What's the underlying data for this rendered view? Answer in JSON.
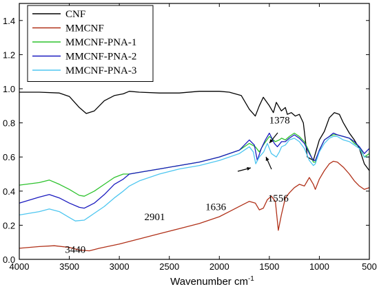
{
  "chart_data": {
    "type": "line",
    "xlabel": "Wavenumber cm",
    "xlabel_superscript": "-1",
    "xlim": [
      4000,
      500
    ],
    "ylim": [
      0.0,
      1.5
    ],
    "x_ticks": [
      "4000",
      "3500",
      "3000",
      "2500",
      "2000",
      "1500",
      "1000",
      "500"
    ],
    "y_ticks": [
      "0.0",
      "0.2",
      "0.4",
      "0.6",
      "0.8",
      "1.0",
      "1.2",
      "1.4"
    ],
    "legend_position": "top-left",
    "annotations": [
      {
        "text": "3440",
        "x": 3440,
        "y": 0.2
      },
      {
        "text": "2901",
        "x": 2901,
        "y": 0.31
      },
      {
        "text": "1636",
        "x": 1636,
        "y": 0.45
      },
      {
        "text": "1556",
        "x": 1556,
        "y": 0.5
      },
      {
        "text": "1378",
        "x": 1378,
        "y": 0.7
      }
    ],
    "series": [
      {
        "name": "CNF",
        "color": "#000000",
        "points": [
          [
            4000,
            0.98
          ],
          [
            3800,
            0.98
          ],
          [
            3600,
            0.975
          ],
          [
            3500,
            0.955
          ],
          [
            3400,
            0.89
          ],
          [
            3330,
            0.855
          ],
          [
            3250,
            0.87
          ],
          [
            3150,
            0.93
          ],
          [
            3050,
            0.96
          ],
          [
            2960,
            0.97
          ],
          [
            2900,
            0.985
          ],
          [
            2800,
            0.98
          ],
          [
            2600,
            0.975
          ],
          [
            2400,
            0.975
          ],
          [
            2200,
            0.985
          ],
          [
            2000,
            0.985
          ],
          [
            1900,
            0.98
          ],
          [
            1780,
            0.96
          ],
          [
            1700,
            0.88
          ],
          [
            1640,
            0.84
          ],
          [
            1600,
            0.9
          ],
          [
            1560,
            0.95
          ],
          [
            1500,
            0.9
          ],
          [
            1460,
            0.86
          ],
          [
            1430,
            0.92
          ],
          [
            1380,
            0.87
          ],
          [
            1340,
            0.89
          ],
          [
            1320,
            0.85
          ],
          [
            1280,
            0.86
          ],
          [
            1240,
            0.84
          ],
          [
            1200,
            0.85
          ],
          [
            1160,
            0.8
          ],
          [
            1120,
            0.6
          ],
          [
            1060,
            0.58
          ],
          [
            1000,
            0.7
          ],
          [
            950,
            0.75
          ],
          [
            900,
            0.83
          ],
          [
            850,
            0.86
          ],
          [
            800,
            0.85
          ],
          [
            760,
            0.8
          ],
          [
            700,
            0.74
          ],
          [
            650,
            0.7
          ],
          [
            600,
            0.65
          ],
          [
            550,
            0.56
          ],
          [
            500,
            0.52
          ]
        ]
      },
      {
        "name": "MMCNF",
        "color": "#b03018",
        "points": [
          [
            4000,
            0.065
          ],
          [
            3800,
            0.075
          ],
          [
            3650,
            0.08
          ],
          [
            3500,
            0.07
          ],
          [
            3400,
            0.055
          ],
          [
            3300,
            0.05
          ],
          [
            3200,
            0.065
          ],
          [
            3000,
            0.09
          ],
          [
            2800,
            0.12
          ],
          [
            2600,
            0.15
          ],
          [
            2400,
            0.18
          ],
          [
            2200,
            0.21
          ],
          [
            2000,
            0.25
          ],
          [
            1900,
            0.28
          ],
          [
            1800,
            0.31
          ],
          [
            1700,
            0.34
          ],
          [
            1640,
            0.33
          ],
          [
            1600,
            0.29
          ],
          [
            1560,
            0.3
          ],
          [
            1520,
            0.35
          ],
          [
            1480,
            0.37
          ],
          [
            1440,
            0.34
          ],
          [
            1410,
            0.17
          ],
          [
            1380,
            0.26
          ],
          [
            1340,
            0.36
          ],
          [
            1300,
            0.39
          ],
          [
            1250,
            0.42
          ],
          [
            1200,
            0.44
          ],
          [
            1150,
            0.43
          ],
          [
            1100,
            0.48
          ],
          [
            1060,
            0.44
          ],
          [
            1040,
            0.41
          ],
          [
            1000,
            0.47
          ],
          [
            950,
            0.52
          ],
          [
            900,
            0.56
          ],
          [
            860,
            0.575
          ],
          [
            820,
            0.57
          ],
          [
            760,
            0.54
          ],
          [
            700,
            0.5
          ],
          [
            650,
            0.46
          ],
          [
            600,
            0.43
          ],
          [
            550,
            0.41
          ],
          [
            500,
            0.42
          ]
        ]
      },
      {
        "name": "MMCNF-PNA-1",
        "color": "#2cc22c",
        "points": [
          [
            4000,
            0.435
          ],
          [
            3800,
            0.45
          ],
          [
            3700,
            0.465
          ],
          [
            3600,
            0.44
          ],
          [
            3500,
            0.41
          ],
          [
            3400,
            0.375
          ],
          [
            3350,
            0.37
          ],
          [
            3250,
            0.4
          ],
          [
            3150,
            0.44
          ],
          [
            3050,
            0.48
          ],
          [
            2960,
            0.5
          ],
          [
            2900,
            0.5
          ],
          [
            2800,
            0.51
          ],
          [
            2600,
            0.53
          ],
          [
            2400,
            0.55
          ],
          [
            2200,
            0.57
          ],
          [
            2000,
            0.6
          ],
          [
            1800,
            0.64
          ],
          [
            1700,
            0.68
          ],
          [
            1640,
            0.66
          ],
          [
            1600,
            0.63
          ],
          [
            1560,
            0.67
          ],
          [
            1500,
            0.72
          ],
          [
            1440,
            0.69
          ],
          [
            1400,
            0.7
          ],
          [
            1378,
            0.71
          ],
          [
            1340,
            0.7
          ],
          [
            1300,
            0.72
          ],
          [
            1250,
            0.74
          ],
          [
            1200,
            0.72
          ],
          [
            1150,
            0.69
          ],
          [
            1100,
            0.63
          ],
          [
            1060,
            0.57
          ],
          [
            1040,
            0.57
          ],
          [
            1000,
            0.64
          ],
          [
            950,
            0.7
          ],
          [
            900,
            0.72
          ],
          [
            860,
            0.73
          ],
          [
            820,
            0.73
          ],
          [
            760,
            0.72
          ],
          [
            700,
            0.71
          ],
          [
            650,
            0.68
          ],
          [
            600,
            0.66
          ],
          [
            550,
            0.6
          ],
          [
            500,
            0.62
          ]
        ]
      },
      {
        "name": "MMCNF-PNA-2",
        "color": "#1a1abf",
        "points": [
          [
            4000,
            0.33
          ],
          [
            3800,
            0.365
          ],
          [
            3700,
            0.38
          ],
          [
            3600,
            0.36
          ],
          [
            3500,
            0.33
          ],
          [
            3400,
            0.305
          ],
          [
            3350,
            0.3
          ],
          [
            3250,
            0.33
          ],
          [
            3150,
            0.38
          ],
          [
            3050,
            0.44
          ],
          [
            2960,
            0.47
          ],
          [
            2900,
            0.5
          ],
          [
            2800,
            0.51
          ],
          [
            2600,
            0.53
          ],
          [
            2400,
            0.55
          ],
          [
            2200,
            0.57
          ],
          [
            2000,
            0.6
          ],
          [
            1800,
            0.64
          ],
          [
            1700,
            0.7
          ],
          [
            1650,
            0.67
          ],
          [
            1620,
            0.58
          ],
          [
            1580,
            0.65
          ],
          [
            1540,
            0.7
          ],
          [
            1500,
            0.74
          ],
          [
            1450,
            0.68
          ],
          [
            1420,
            0.66
          ],
          [
            1378,
            0.69
          ],
          [
            1340,
            0.69
          ],
          [
            1300,
            0.71
          ],
          [
            1250,
            0.73
          ],
          [
            1200,
            0.71
          ],
          [
            1150,
            0.68
          ],
          [
            1100,
            0.62
          ],
          [
            1060,
            0.58
          ],
          [
            1040,
            0.58
          ],
          [
            1000,
            0.64
          ],
          [
            950,
            0.7
          ],
          [
            900,
            0.72
          ],
          [
            860,
            0.74
          ],
          [
            820,
            0.73
          ],
          [
            760,
            0.72
          ],
          [
            700,
            0.71
          ],
          [
            650,
            0.69
          ],
          [
            600,
            0.66
          ],
          [
            550,
            0.62
          ],
          [
            500,
            0.65
          ]
        ]
      },
      {
        "name": "MMCNF-PNA-3",
        "color": "#4dc6f0",
        "points": [
          [
            4000,
            0.26
          ],
          [
            3800,
            0.28
          ],
          [
            3700,
            0.295
          ],
          [
            3600,
            0.28
          ],
          [
            3500,
            0.245
          ],
          [
            3440,
            0.225
          ],
          [
            3350,
            0.23
          ],
          [
            3250,
            0.27
          ],
          [
            3150,
            0.31
          ],
          [
            3050,
            0.36
          ],
          [
            2960,
            0.4
          ],
          [
            2900,
            0.43
          ],
          [
            2800,
            0.46
          ],
          [
            2600,
            0.5
          ],
          [
            2400,
            0.53
          ],
          [
            2200,
            0.55
          ],
          [
            2000,
            0.58
          ],
          [
            1800,
            0.62
          ],
          [
            1700,
            0.66
          ],
          [
            1660,
            0.63
          ],
          [
            1636,
            0.56
          ],
          [
            1600,
            0.6
          ],
          [
            1556,
            0.63
          ],
          [
            1520,
            0.68
          ],
          [
            1480,
            0.62
          ],
          [
            1430,
            0.6
          ],
          [
            1400,
            0.63
          ],
          [
            1378,
            0.66
          ],
          [
            1340,
            0.67
          ],
          [
            1300,
            0.7
          ],
          [
            1250,
            0.71
          ],
          [
            1200,
            0.69
          ],
          [
            1150,
            0.65
          ],
          [
            1100,
            0.58
          ],
          [
            1060,
            0.55
          ],
          [
            1040,
            0.56
          ],
          [
            1000,
            0.63
          ],
          [
            950,
            0.68
          ],
          [
            900,
            0.71
          ],
          [
            860,
            0.72
          ],
          [
            820,
            0.72
          ],
          [
            760,
            0.7
          ],
          [
            700,
            0.69
          ],
          [
            650,
            0.67
          ],
          [
            600,
            0.65
          ],
          [
            550,
            0.6
          ],
          [
            500,
            0.6
          ]
        ]
      }
    ]
  }
}
